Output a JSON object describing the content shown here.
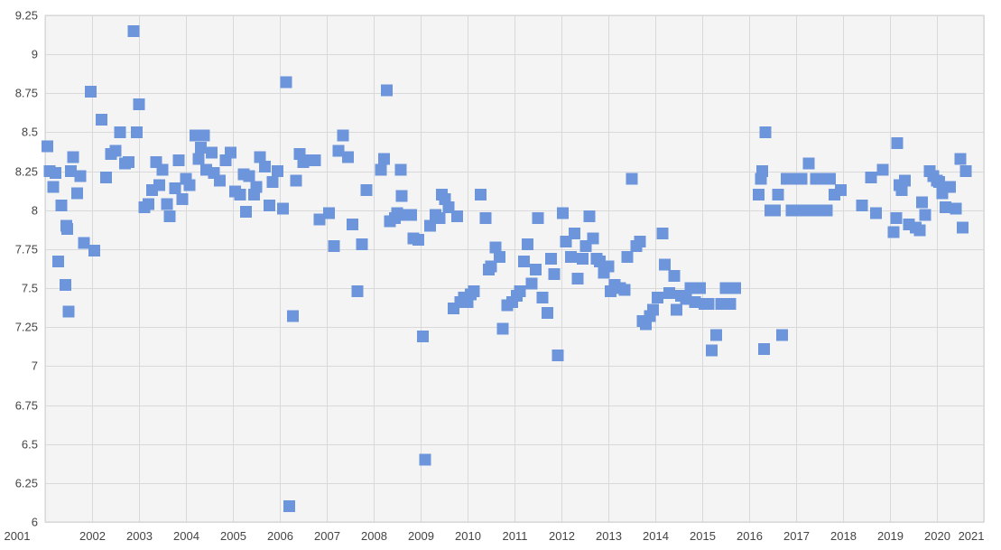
{
  "chart_data": {
    "type": "scatter",
    "title": "",
    "xlabel": "",
    "ylabel": "",
    "xlim": [
      2001,
      2021
    ],
    "ylim": [
      6,
      9.25
    ],
    "x_ticks": [
      2001,
      2002,
      2003,
      2004,
      2005,
      2006,
      2007,
      2008,
      2009,
      2010,
      2011,
      2012,
      2013,
      2014,
      2015,
      2016,
      2017,
      2018,
      2019,
      2020,
      2021
    ],
    "y_ticks": [
      6,
      6.25,
      6.5,
      6.75,
      7,
      7.25,
      7.5,
      7.75,
      8,
      8.25,
      8.5,
      8.75,
      9,
      9.25
    ],
    "grid": true,
    "legend": "none",
    "marker": "square",
    "color": "#6d95dc",
    "series": [
      {
        "points": [
          [
            2001.05,
            8.41
          ],
          [
            2001.1,
            8.25
          ],
          [
            2001.17,
            8.15
          ],
          [
            2001.22,
            8.24
          ],
          [
            2001.28,
            7.67
          ],
          [
            2001.35,
            8.03
          ],
          [
            2001.43,
            7.52
          ],
          [
            2001.45,
            7.9
          ],
          [
            2001.47,
            7.88
          ],
          [
            2001.5,
            7.35
          ],
          [
            2001.55,
            8.25
          ],
          [
            2001.6,
            8.34
          ],
          [
            2001.68,
            8.11
          ],
          [
            2001.75,
            8.22
          ],
          [
            2001.83,
            7.79
          ],
          [
            2001.97,
            8.76
          ],
          [
            2002.05,
            7.74
          ],
          [
            2002.2,
            8.58
          ],
          [
            2002.3,
            8.21
          ],
          [
            2002.4,
            8.36
          ],
          [
            2002.5,
            8.38
          ],
          [
            2002.6,
            8.5
          ],
          [
            2002.7,
            8.3
          ],
          [
            2002.78,
            8.31
          ],
          [
            2002.88,
            9.15
          ],
          [
            2002.95,
            8.5
          ],
          [
            2003.0,
            8.68
          ],
          [
            2003.12,
            8.02
          ],
          [
            2003.2,
            8.04
          ],
          [
            2003.28,
            8.13
          ],
          [
            2003.37,
            8.31
          ],
          [
            2003.43,
            8.16
          ],
          [
            2003.5,
            8.26
          ],
          [
            2003.6,
            8.04
          ],
          [
            2003.65,
            7.96
          ],
          [
            2003.77,
            8.14
          ],
          [
            2003.85,
            8.32
          ],
          [
            2003.92,
            8.07
          ],
          [
            2004.0,
            8.2
          ],
          [
            2004.08,
            8.16
          ],
          [
            2004.2,
            8.48
          ],
          [
            2004.27,
            8.33
          ],
          [
            2004.32,
            8.4
          ],
          [
            2004.38,
            8.48
          ],
          [
            2004.43,
            8.26
          ],
          [
            2004.55,
            8.37
          ],
          [
            2004.6,
            8.24
          ],
          [
            2004.72,
            8.19
          ],
          [
            2004.85,
            8.32
          ],
          [
            2004.95,
            8.37
          ],
          [
            2005.05,
            8.12
          ],
          [
            2005.15,
            8.1
          ],
          [
            2005.23,
            8.23
          ],
          [
            2005.28,
            7.99
          ],
          [
            2005.35,
            8.22
          ],
          [
            2005.45,
            8.1
          ],
          [
            2005.5,
            8.15
          ],
          [
            2005.58,
            8.34
          ],
          [
            2005.68,
            8.28
          ],
          [
            2005.78,
            8.03
          ],
          [
            2005.85,
            8.18
          ],
          [
            2005.95,
            8.25
          ],
          [
            2006.07,
            8.01
          ],
          [
            2006.13,
            8.82
          ],
          [
            2006.2,
            6.1
          ],
          [
            2006.28,
            7.32
          ],
          [
            2006.35,
            8.19
          ],
          [
            2006.42,
            8.36
          ],
          [
            2006.5,
            8.31
          ],
          [
            2006.6,
            8.32
          ],
          [
            2006.75,
            8.32
          ],
          [
            2006.85,
            7.94
          ],
          [
            2007.05,
            7.98
          ],
          [
            2007.15,
            7.77
          ],
          [
            2007.25,
            8.38
          ],
          [
            2007.35,
            8.48
          ],
          [
            2007.45,
            8.34
          ],
          [
            2007.55,
            7.91
          ],
          [
            2007.65,
            7.48
          ],
          [
            2007.75,
            7.78
          ],
          [
            2007.85,
            8.13
          ],
          [
            2008.15,
            8.26
          ],
          [
            2008.22,
            8.33
          ],
          [
            2008.28,
            8.77
          ],
          [
            2008.35,
            7.93
          ],
          [
            2008.45,
            7.95
          ],
          [
            2008.5,
            7.98
          ],
          [
            2008.58,
            8.26
          ],
          [
            2008.6,
            8.09
          ],
          [
            2008.68,
            7.97
          ],
          [
            2008.8,
            7.97
          ],
          [
            2008.85,
            7.82
          ],
          [
            2008.95,
            7.81
          ],
          [
            2009.05,
            7.19
          ],
          [
            2009.1,
            6.4
          ],
          [
            2009.2,
            7.9
          ],
          [
            2009.32,
            7.97
          ],
          [
            2009.4,
            7.95
          ],
          [
            2009.45,
            8.1
          ],
          [
            2009.52,
            8.07
          ],
          [
            2009.6,
            8.02
          ],
          [
            2009.7,
            7.37
          ],
          [
            2009.78,
            7.96
          ],
          [
            2009.85,
            7.41
          ],
          [
            2009.92,
            7.44
          ],
          [
            2010.0,
            7.41
          ],
          [
            2010.07,
            7.46
          ],
          [
            2010.13,
            7.48
          ],
          [
            2010.28,
            8.1
          ],
          [
            2010.38,
            7.95
          ],
          [
            2010.45,
            7.62
          ],
          [
            2010.5,
            7.64
          ],
          [
            2010.6,
            7.76
          ],
          [
            2010.68,
            7.7
          ],
          [
            2010.75,
            7.24
          ],
          [
            2010.85,
            7.39
          ],
          [
            2010.95,
            7.41
          ],
          [
            2011.05,
            7.45
          ],
          [
            2011.12,
            7.48
          ],
          [
            2011.2,
            7.67
          ],
          [
            2011.28,
            7.78
          ],
          [
            2011.37,
            7.53
          ],
          [
            2011.45,
            7.62
          ],
          [
            2011.5,
            7.95
          ],
          [
            2011.6,
            7.44
          ],
          [
            2011.7,
            7.34
          ],
          [
            2011.78,
            7.69
          ],
          [
            2011.85,
            7.59
          ],
          [
            2011.92,
            7.07
          ],
          [
            2012.03,
            7.98
          ],
          [
            2012.1,
            7.8
          ],
          [
            2012.2,
            7.7
          ],
          [
            2012.28,
            7.85
          ],
          [
            2012.35,
            7.56
          ],
          [
            2012.45,
            7.69
          ],
          [
            2012.52,
            7.77
          ],
          [
            2012.6,
            7.96
          ],
          [
            2012.67,
            7.82
          ],
          [
            2012.75,
            7.69
          ],
          [
            2012.82,
            7.67
          ],
          [
            2012.9,
            7.6
          ],
          [
            2013.0,
            7.64
          ],
          [
            2013.05,
            7.48
          ],
          [
            2013.13,
            7.52
          ],
          [
            2013.25,
            7.5
          ],
          [
            2013.35,
            7.49
          ],
          [
            2013.4,
            7.7
          ],
          [
            2013.5,
            8.2
          ],
          [
            2013.6,
            7.77
          ],
          [
            2013.67,
            7.8
          ],
          [
            2013.73,
            7.29
          ],
          [
            2013.8,
            7.27
          ],
          [
            2013.88,
            7.32
          ],
          [
            2013.95,
            7.36
          ],
          [
            2014.05,
            7.44
          ],
          [
            2014.15,
            7.85
          ],
          [
            2014.2,
            7.65
          ],
          [
            2014.3,
            7.47
          ],
          [
            2014.4,
            7.58
          ],
          [
            2014.45,
            7.36
          ],
          [
            2014.55,
            7.45
          ],
          [
            2014.65,
            7.43
          ],
          [
            2014.75,
            7.5
          ],
          [
            2014.85,
            7.41
          ],
          [
            2014.95,
            7.5
          ],
          [
            2015.05,
            7.4
          ],
          [
            2015.13,
            7.4
          ],
          [
            2015.2,
            7.1
          ],
          [
            2015.3,
            7.2
          ],
          [
            2015.4,
            7.4
          ],
          [
            2015.5,
            7.5
          ],
          [
            2015.6,
            7.4
          ],
          [
            2015.7,
            7.5
          ],
          [
            2016.2,
            8.1
          ],
          [
            2016.25,
            8.2
          ],
          [
            2016.28,
            8.25
          ],
          [
            2016.32,
            7.11
          ],
          [
            2016.35,
            8.5
          ],
          [
            2016.45,
            8.0
          ],
          [
            2016.55,
            8.0
          ],
          [
            2016.62,
            8.1
          ],
          [
            2016.7,
            7.2
          ],
          [
            2016.8,
            8.2
          ],
          [
            2016.9,
            8.0
          ],
          [
            2017.0,
            8.2
          ],
          [
            2017.05,
            8.0
          ],
          [
            2017.12,
            8.2
          ],
          [
            2017.2,
            8.0
          ],
          [
            2017.27,
            8.3
          ],
          [
            2017.35,
            8.0
          ],
          [
            2017.42,
            8.2
          ],
          [
            2017.5,
            8.0
          ],
          [
            2017.57,
            8.2
          ],
          [
            2017.65,
            8.0
          ],
          [
            2017.72,
            8.2
          ],
          [
            2017.82,
            8.1
          ],
          [
            2017.95,
            8.13
          ],
          [
            2018.4,
            8.03
          ],
          [
            2018.6,
            8.21
          ],
          [
            2018.7,
            7.98
          ],
          [
            2018.85,
            8.26
          ],
          [
            2019.08,
            7.86
          ],
          [
            2019.13,
            7.95
          ],
          [
            2019.15,
            8.43
          ],
          [
            2019.2,
            8.16
          ],
          [
            2019.25,
            8.13
          ],
          [
            2019.32,
            8.19
          ],
          [
            2019.4,
            7.91
          ],
          [
            2019.55,
            7.89
          ],
          [
            2019.63,
            7.87
          ],
          [
            2019.68,
            8.05
          ],
          [
            2019.75,
            7.97
          ],
          [
            2019.85,
            8.25
          ],
          [
            2019.92,
            8.22
          ],
          [
            2020.0,
            8.19
          ],
          [
            2020.05,
            8.18
          ],
          [
            2020.12,
            8.11
          ],
          [
            2020.18,
            8.02
          ],
          [
            2020.28,
            8.15
          ],
          [
            2020.4,
            8.01
          ],
          [
            2020.5,
            8.33
          ],
          [
            2020.55,
            7.89
          ],
          [
            2020.62,
            8.25
          ]
        ]
      }
    ]
  }
}
